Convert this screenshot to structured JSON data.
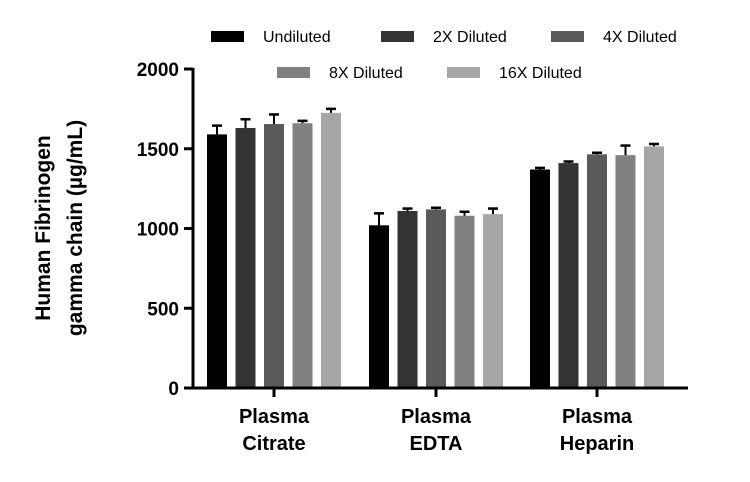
{
  "chart_data": {
    "type": "bar",
    "title": "",
    "ylabel_lines": [
      "Human Fibrinogen",
      "gamma chain (µg/mL)"
    ],
    "xlabel": "",
    "ylim": [
      0,
      2000
    ],
    "yticks": [
      0,
      500,
      1000,
      1500,
      2000
    ],
    "categories": [
      [
        "Plasma",
        "Citrate"
      ],
      [
        "Plasma",
        "EDTA"
      ],
      [
        "Plasma",
        "Heparin"
      ]
    ],
    "series": [
      {
        "name": "Undiluted",
        "color": "#000000",
        "values": [
          1590,
          1020,
          1370
        ],
        "errors": [
          55,
          75,
          10
        ]
      },
      {
        "name": "2X Diluted",
        "color": "#333333",
        "values": [
          1630,
          1110,
          1410
        ],
        "errors": [
          55,
          15,
          10
        ]
      },
      {
        "name": "4X Diluted",
        "color": "#5a5a5a",
        "values": [
          1655,
          1120,
          1465
        ],
        "errors": [
          60,
          10,
          10
        ]
      },
      {
        "name": "8X Diluted",
        "color": "#818181",
        "values": [
          1660,
          1080,
          1460
        ],
        "errors": [
          15,
          25,
          60
        ]
      },
      {
        "name": "16X Diluted",
        "color": "#a6a6a8",
        "values": [
          1725,
          1090,
          1515
        ],
        "errors": [
          25,
          35,
          15
        ]
      }
    ],
    "legend_placement": "top"
  }
}
